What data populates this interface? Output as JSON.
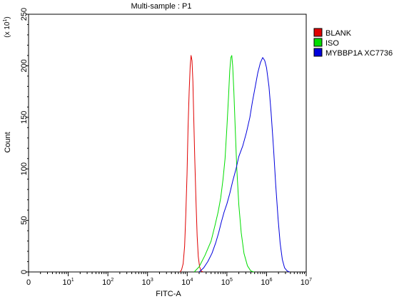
{
  "chart_data": {
    "type": "line",
    "title": "Multi-sample : P1",
    "xlabel": "FITC-A",
    "ylabel": "Count",
    "y_scale_label": "(x 10",
    "y_scale_exponent": "1",
    "y_scale_close": ")",
    "x_scale": "log",
    "xlim": [
      0,
      10000000
    ],
    "ylim": [
      0,
      250
    ],
    "x_ticks": [
      {
        "base": "0",
        "exp": ""
      },
      {
        "base": "10",
        "exp": "1"
      },
      {
        "base": "10",
        "exp": "2"
      },
      {
        "base": "10",
        "exp": "3"
      },
      {
        "base": "10",
        "exp": "4"
      },
      {
        "base": "10",
        "exp": "5"
      },
      {
        "base": "10",
        "exp": "6"
      },
      {
        "base": "10",
        "exp": "7"
      }
    ],
    "y_ticks": [
      "0",
      "50",
      "100",
      "150",
      "200",
      "250"
    ],
    "legend_position": "top-right",
    "series": [
      {
        "name": "BLANK",
        "color": "#e00000",
        "points": [
          [
            6600,
            0
          ],
          [
            7200,
            2
          ],
          [
            7900,
            8
          ],
          [
            8600,
            25
          ],
          [
            9200,
            55
          ],
          [
            9900,
            95
          ],
          [
            10500,
            140
          ],
          [
            11200,
            175
          ],
          [
            11900,
            200
          ],
          [
            12500,
            210
          ],
          [
            13200,
            205
          ],
          [
            13900,
            185
          ],
          [
            14600,
            150
          ],
          [
            15500,
            110
          ],
          [
            16600,
            70
          ],
          [
            17800,
            35
          ],
          [
            19000,
            15
          ],
          [
            20500,
            5
          ],
          [
            22400,
            1
          ],
          [
            25000,
            0
          ]
        ]
      },
      {
        "name": "ISO",
        "color": "#00dd00",
        "points": [
          [
            15000,
            0
          ],
          [
            20000,
            5
          ],
          [
            28000,
            16
          ],
          [
            40000,
            30
          ],
          [
            50000,
            45
          ],
          [
            60000,
            58
          ],
          [
            70000,
            72
          ],
          [
            80000,
            90
          ],
          [
            90000,
            110
          ],
          [
            100000,
            140
          ],
          [
            110000,
            170
          ],
          [
            118000,
            195
          ],
          [
            126000,
            208
          ],
          [
            133000,
            210
          ],
          [
            140000,
            200
          ],
          [
            150000,
            175
          ],
          [
            162000,
            140
          ],
          [
            178000,
            100
          ],
          [
            200000,
            65
          ],
          [
            230000,
            38
          ],
          [
            270000,
            18
          ],
          [
            330000,
            6
          ],
          [
            400000,
            1
          ],
          [
            480000,
            0
          ]
        ]
      },
      {
        "name": "MYBBP1A XC7736",
        "color": "#0000dd",
        "points": [
          [
            20000,
            0
          ],
          [
            26000,
            4
          ],
          [
            33000,
            10
          ],
          [
            42000,
            18
          ],
          [
            52000,
            28
          ],
          [
            62000,
            38
          ],
          [
            72000,
            48
          ],
          [
            85000,
            58
          ],
          [
            100000,
            66
          ],
          [
            118000,
            76
          ],
          [
            140000,
            88
          ],
          [
            170000,
            100
          ],
          [
            200000,
            112
          ],
          [
            250000,
            122
          ],
          [
            310000,
            135
          ],
          [
            380000,
            150
          ],
          [
            440000,
            165
          ],
          [
            520000,
            180
          ],
          [
            600000,
            193
          ],
          [
            700000,
            203
          ],
          [
            800000,
            208
          ],
          [
            900000,
            205
          ],
          [
            1000000,
            198
          ],
          [
            1150000,
            180
          ],
          [
            1300000,
            155
          ],
          [
            1500000,
            120
          ],
          [
            1700000,
            85
          ],
          [
            1950000,
            52
          ],
          [
            2200000,
            28
          ],
          [
            2500000,
            12
          ],
          [
            2850000,
            4
          ],
          [
            3300000,
            1
          ],
          [
            3800000,
            0
          ]
        ]
      }
    ]
  }
}
